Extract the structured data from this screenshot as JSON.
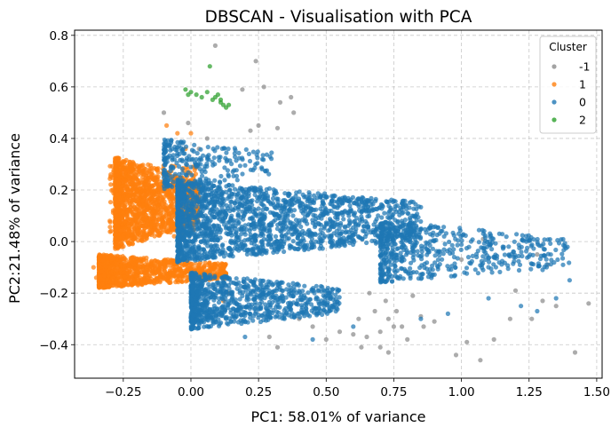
{
  "chart_data": {
    "type": "scatter",
    "title": "DBSCAN - Visualisation with PCA",
    "xlabel": "PC1: 58.01% of variance",
    "ylabel": "PC2:21.48% of variance",
    "xlim": [
      -0.43,
      1.52
    ],
    "ylim": [
      -0.53,
      0.82
    ],
    "xticks": [
      -0.25,
      0.0,
      0.25,
      0.5,
      0.75,
      1.0,
      1.25,
      1.5
    ],
    "xtick_labels": [
      "−0.25",
      "0.00",
      "0.25",
      "0.50",
      "0.75",
      "1.00",
      "1.25",
      "1.50"
    ],
    "yticks": [
      -0.4,
      -0.2,
      0.0,
      0.2,
      0.4,
      0.6,
      0.8
    ],
    "ytick_labels": [
      "−0.4",
      "−0.2",
      "0.0",
      "0.2",
      "0.4",
      "0.6",
      "0.8"
    ],
    "grid": true,
    "legend": {
      "title": "Cluster",
      "placement": "top-right"
    },
    "series": [
      {
        "name": "-1",
        "color": "#8c8c8c",
        "points": [
          [
            0.09,
            0.76
          ],
          [
            0.24,
            0.7
          ],
          [
            0.19,
            0.59
          ],
          [
            0.27,
            0.6
          ],
          [
            0.37,
            0.56
          ],
          [
            0.33,
            0.54
          ],
          [
            0.38,
            0.5
          ],
          [
            0.25,
            0.45
          ],
          [
            0.22,
            0.43
          ],
          [
            0.32,
            0.44
          ],
          [
            -0.1,
            0.5
          ],
          [
            -0.01,
            0.46
          ],
          [
            0.06,
            0.4
          ],
          [
            0.03,
            0.36
          ],
          [
            0.82,
            -0.21
          ],
          [
            0.66,
            -0.2
          ],
          [
            0.68,
            -0.27
          ],
          [
            0.62,
            -0.3
          ],
          [
            0.72,
            -0.23
          ],
          [
            0.55,
            -0.35
          ],
          [
            0.6,
            -0.36
          ],
          [
            0.7,
            -0.35
          ],
          [
            0.73,
            -0.3
          ],
          [
            0.75,
            -0.33
          ],
          [
            0.63,
            -0.41
          ],
          [
            0.65,
            -0.37
          ],
          [
            0.78,
            -0.33
          ],
          [
            0.76,
            -0.27
          ],
          [
            0.7,
            -0.41
          ],
          [
            0.73,
            -0.43
          ],
          [
            0.8,
            -0.38
          ],
          [
            0.86,
            -0.33
          ],
          [
            0.85,
            -0.29
          ],
          [
            0.9,
            -0.31
          ],
          [
            0.5,
            -0.38
          ],
          [
            0.45,
            -0.33
          ],
          [
            0.4,
            -0.3
          ],
          [
            0.29,
            -0.37
          ],
          [
            0.32,
            -0.41
          ],
          [
            1.02,
            -0.39
          ],
          [
            1.07,
            -0.46
          ],
          [
            0.98,
            -0.44
          ],
          [
            1.0,
            -0.07
          ],
          [
            1.08,
            0.01
          ],
          [
            1.12,
            -0.38
          ],
          [
            1.18,
            -0.3
          ],
          [
            1.26,
            -0.3
          ],
          [
            1.3,
            -0.23
          ],
          [
            1.35,
            -0.25
          ],
          [
            1.42,
            -0.43
          ],
          [
            1.47,
            -0.24
          ],
          [
            1.28,
            -0.05
          ],
          [
            1.32,
            -0.09
          ],
          [
            1.2,
            -0.19
          ]
        ]
      },
      {
        "name": "1",
        "color": "#ff7f0e",
        "regions": [
          {
            "count": 1300,
            "x": [
              -0.28,
              0.03
            ],
            "y": [
              -0.03,
              0.33
            ],
            "taper": 1
          },
          {
            "count": 1100,
            "x": [
              -0.34,
              0.13
            ],
            "y": [
              -0.18,
              -0.05
            ],
            "taper": 1
          },
          {
            "count": 350,
            "x": [
              -0.3,
              0.02
            ],
            "y": [
              0.02,
              0.3
            ],
            "taper": 0
          }
        ],
        "points": [
          [
            -0.09,
            0.45
          ],
          [
            -0.05,
            0.42
          ],
          [
            0.0,
            0.42
          ],
          [
            -0.02,
            0.36
          ],
          [
            -0.3,
            0.08
          ],
          [
            -0.36,
            -0.1
          ],
          [
            -0.35,
            -0.14
          ],
          [
            0.12,
            -0.23
          ],
          [
            0.14,
            -0.2
          ],
          [
            -0.2,
            0.28
          ]
        ]
      },
      {
        "name": "0",
        "color": "#1f77b4",
        "regions": [
          {
            "count": 1900,
            "x": [
              -0.05,
              0.85
            ],
            "y": [
              -0.08,
              0.24
            ],
            "taper": 1
          },
          {
            "count": 900,
            "x": [
              0.0,
              0.55
            ],
            "y": [
              -0.34,
              -0.12
            ],
            "taper": 1
          },
          {
            "count": 550,
            "x": [
              0.7,
              1.4
            ],
            "y": [
              -0.16,
              0.08
            ],
            "taper": 1
          },
          {
            "count": 250,
            "x": [
              -0.1,
              0.3
            ],
            "y": [
              0.2,
              0.4
            ],
            "taper": 1
          }
        ],
        "points": [
          [
            1.4,
            -0.15
          ],
          [
            1.35,
            -0.22
          ],
          [
            1.28,
            -0.27
          ],
          [
            1.22,
            -0.25
          ],
          [
            1.1,
            -0.22
          ],
          [
            0.95,
            -0.28
          ],
          [
            0.85,
            -0.3
          ],
          [
            0.6,
            -0.33
          ],
          [
            0.45,
            -0.38
          ],
          [
            0.2,
            -0.37
          ],
          [
            1.3,
            -0.11
          ],
          [
            1.24,
            0.0
          ]
        ]
      },
      {
        "name": "2",
        "color": "#2ca02c",
        "points": [
          [
            0.07,
            0.68
          ],
          [
            -0.02,
            0.59
          ],
          [
            -0.01,
            0.57
          ],
          [
            0.0,
            0.58
          ],
          [
            0.02,
            0.57
          ],
          [
            0.04,
            0.56
          ],
          [
            0.06,
            0.58
          ],
          [
            0.08,
            0.55
          ],
          [
            0.09,
            0.56
          ],
          [
            0.1,
            0.57
          ],
          [
            0.11,
            0.54
          ],
          [
            0.12,
            0.53
          ],
          [
            0.13,
            0.52
          ],
          [
            0.14,
            0.53
          ],
          [
            0.11,
            0.55
          ]
        ]
      }
    ]
  }
}
